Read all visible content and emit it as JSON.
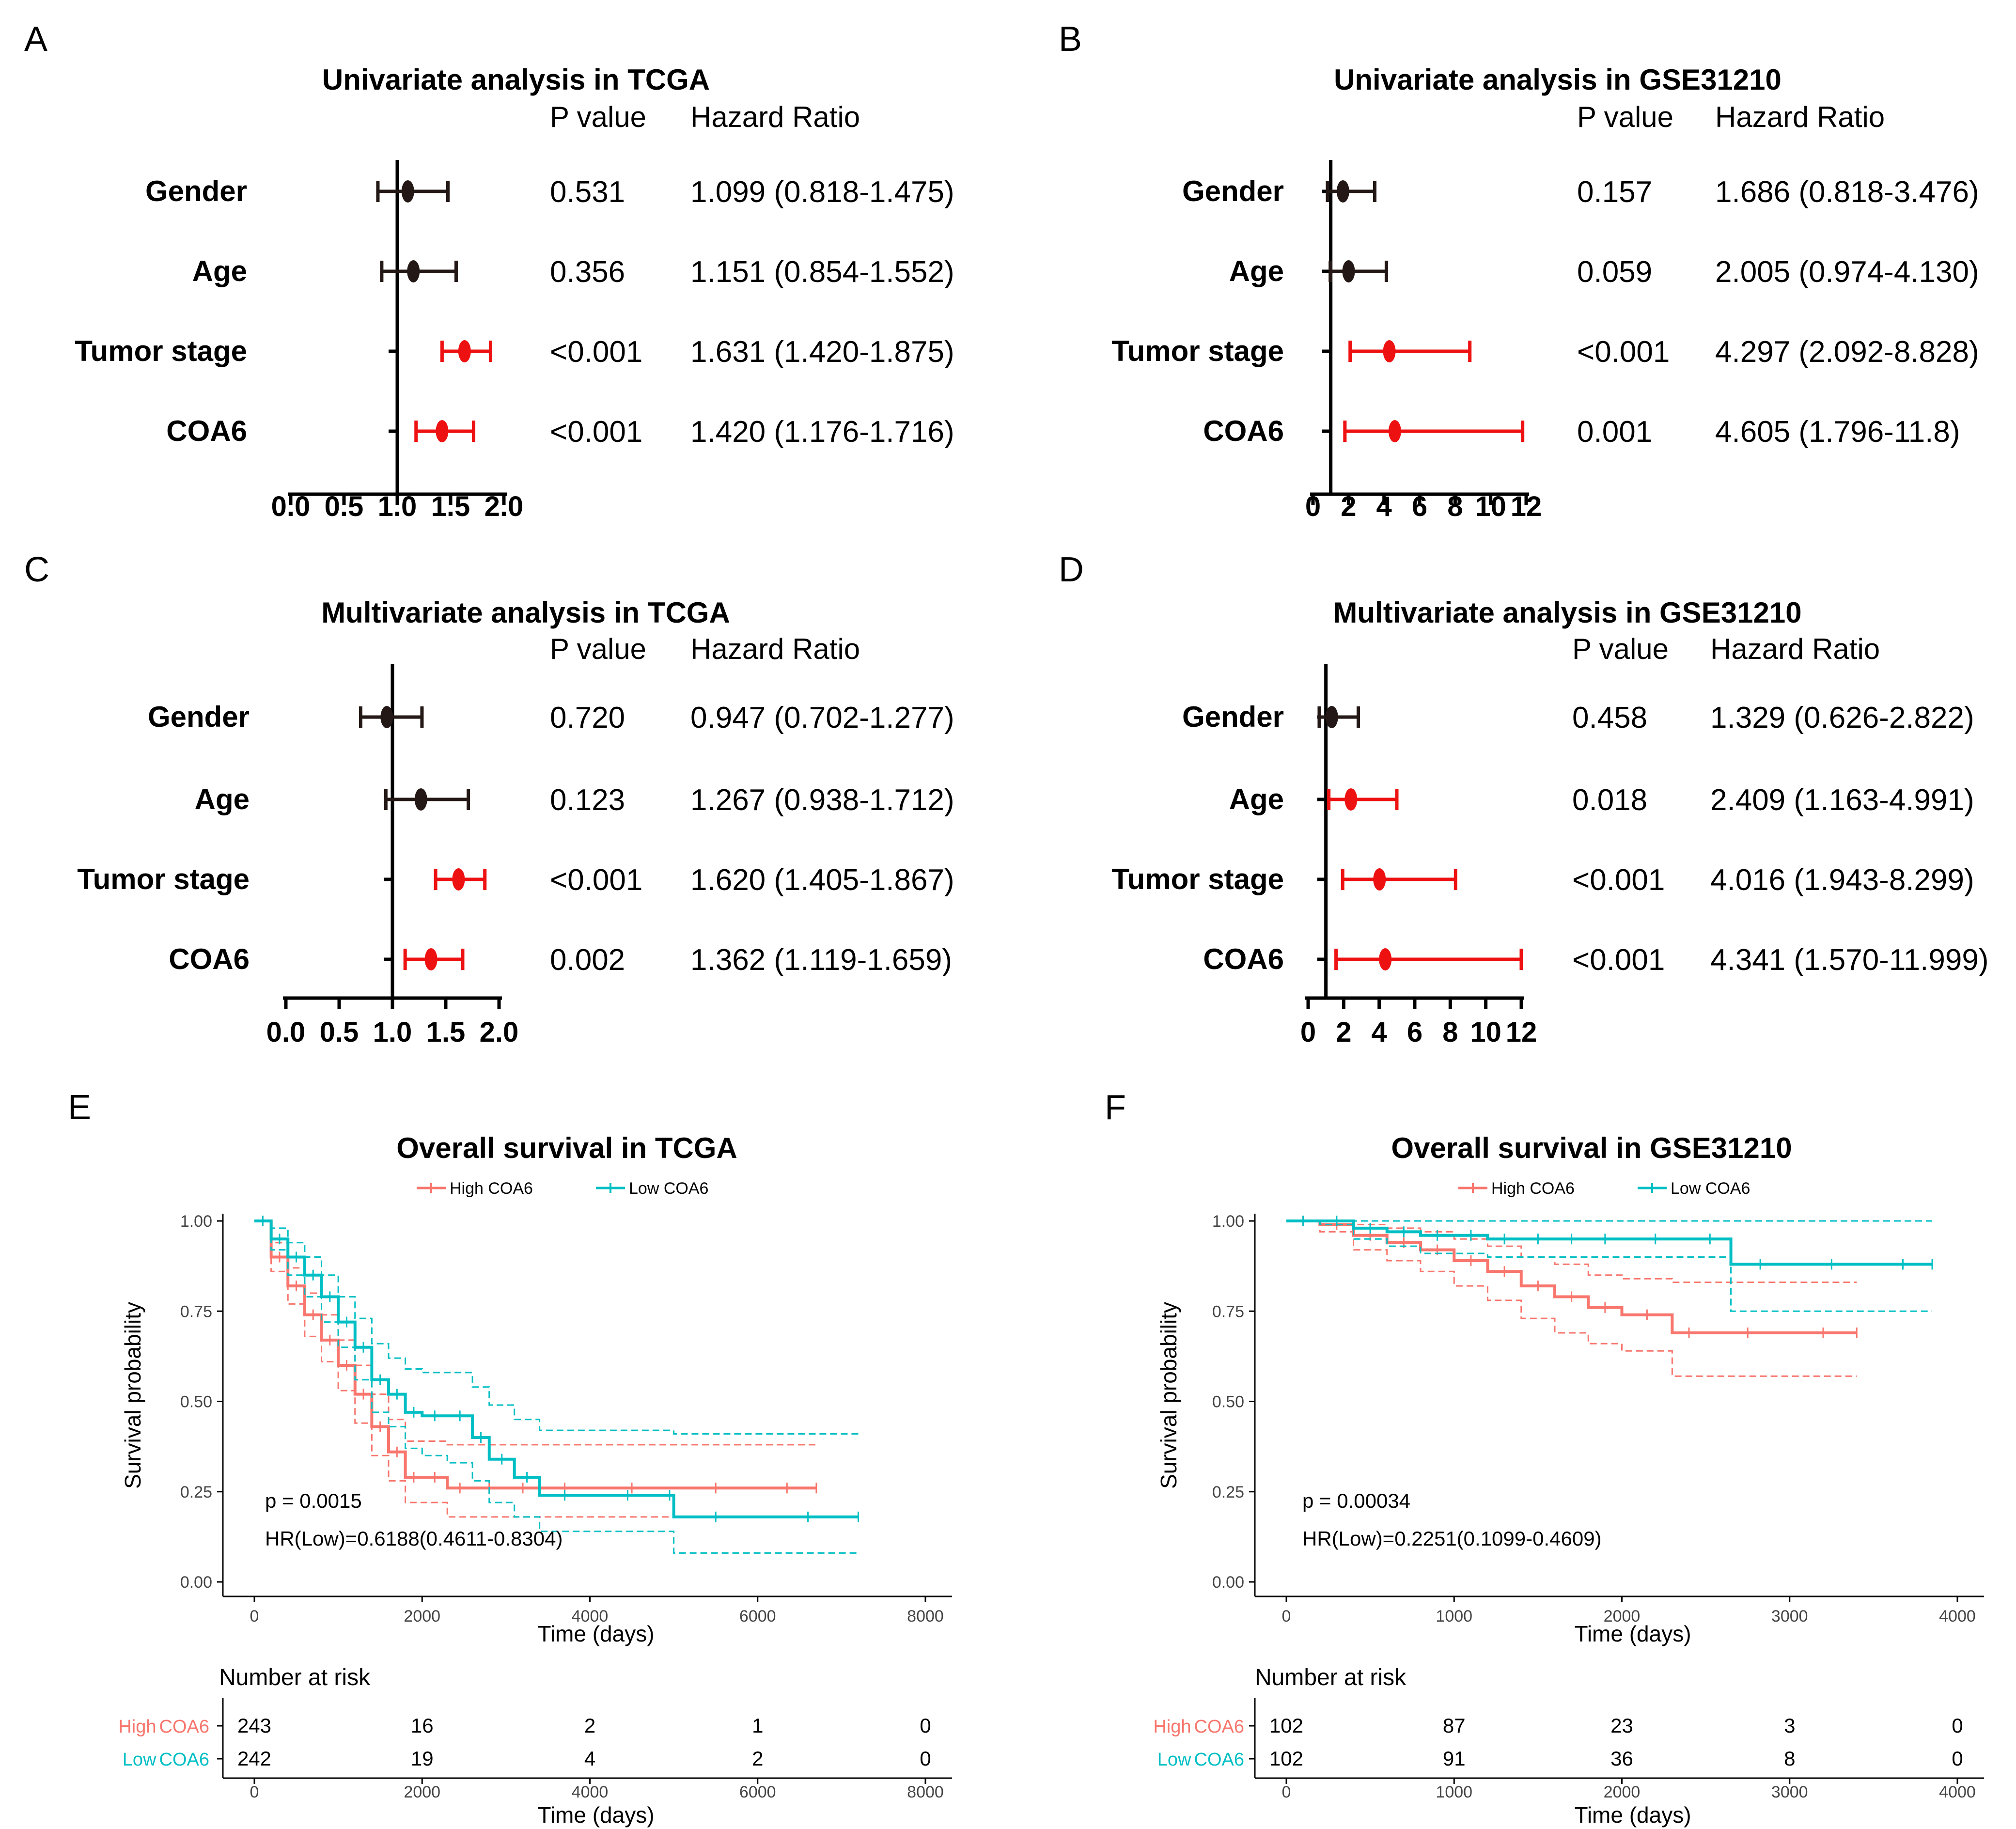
{
  "colors": {
    "significant": "#ee1111",
    "nonsignificant": "#231815",
    "high": "#f8766d",
    "low": "#00bfc4",
    "axis": "#000000"
  },
  "forest": [
    {
      "letter": "A",
      "title": "Univariate analysis in TCGA",
      "pvalue_header": "P value",
      "hr_header": "Hazard Ratio",
      "xticks": [
        "0.0",
        "0.5",
        "1.0",
        "1.5",
        "2.0"
      ],
      "xlim": [
        0,
        2
      ],
      "ref_line": 1,
      "rows": [
        {
          "label": "Gender",
          "p": "0.531",
          "hr_text": "1.099 (0.818-1.475)",
          "hr": 1.099,
          "lower": 0.818,
          "upper": 1.475,
          "significant": false
        },
        {
          "label": "Age",
          "p": "0.356",
          "hr_text": "1.151 (0.854-1.552)",
          "hr": 1.151,
          "lower": 0.854,
          "upper": 1.552,
          "significant": false
        },
        {
          "label": "Tumor stage",
          "p": "<0.001",
          "hr_text": "1.631 (1.420-1.875)",
          "hr": 1.631,
          "lower": 1.42,
          "upper": 1.875,
          "significant": true
        },
        {
          "label": "COA6",
          "p": "<0.001",
          "hr_text": "1.420 (1.176-1.716)",
          "hr": 1.42,
          "lower": 1.176,
          "upper": 1.716,
          "significant": true
        }
      ]
    },
    {
      "letter": "B",
      "title": "Univariate analysis in GSE31210",
      "pvalue_header": "P value",
      "hr_header": "Hazard Ratio",
      "xticks": [
        "0",
        "2",
        "4",
        "6",
        "8",
        "10",
        "12"
      ],
      "xlim": [
        0,
        12
      ],
      "ref_line": 1,
      "rows": [
        {
          "label": "Gender",
          "p": "0.157",
          "hr_text": "1.686 (0.818-3.476)",
          "hr": 1.686,
          "lower": 0.818,
          "upper": 3.476,
          "significant": false
        },
        {
          "label": "Age",
          "p": "0.059",
          "hr_text": "2.005 (0.974-4.130)",
          "hr": 2.005,
          "lower": 0.974,
          "upper": 4.13,
          "significant": false
        },
        {
          "label": "Tumor stage",
          "p": "<0.001",
          "hr_text": "4.297 (2.092-8.828)",
          "hr": 4.297,
          "lower": 2.092,
          "upper": 8.828,
          "significant": true
        },
        {
          "label": "COA6",
          "p": "0.001",
          "hr_text": "4.605 (1.796-11.8)",
          "hr": 4.605,
          "lower": 1.796,
          "upper": 11.8,
          "significant": true
        }
      ]
    },
    {
      "letter": "C",
      "title": "Multivariate analysis in TCGA",
      "pvalue_header": "P value",
      "hr_header": "Hazard Ratio",
      "xticks": [
        "0.0",
        "0.5",
        "1.0",
        "1.5",
        "2.0"
      ],
      "xlim": [
        0,
        2
      ],
      "ref_line": 1,
      "rows": [
        {
          "label": "Gender",
          "p": "0.720",
          "hr_text": "0.947 (0.702-1.277)",
          "hr": 0.947,
          "lower": 0.702,
          "upper": 1.277,
          "significant": false
        },
        {
          "label": "Age",
          "p": "0.123",
          "hr_text": "1.267 (0.938-1.712)",
          "hr": 1.267,
          "lower": 0.938,
          "upper": 1.712,
          "significant": false
        },
        {
          "label": "Tumor stage",
          "p": "<0.001",
          "hr_text": "1.620 (1.405-1.867)",
          "hr": 1.62,
          "lower": 1.405,
          "upper": 1.867,
          "significant": true
        },
        {
          "label": "COA6",
          "p": "0.002",
          "hr_text": "1.362 (1.119-1.659)",
          "hr": 1.362,
          "lower": 1.119,
          "upper": 1.659,
          "significant": true
        }
      ]
    },
    {
      "letter": "D",
      "title": "Multivariate analysis in GSE31210",
      "pvalue_header": "P value",
      "hr_header": "Hazard Ratio",
      "xticks": [
        "0",
        "2",
        "4",
        "6",
        "8",
        "10",
        "12"
      ],
      "xlim": [
        0,
        12
      ],
      "ref_line": 1,
      "rows": [
        {
          "label": "Gender",
          "p": "0.458",
          "hr_text": "1.329 (0.626-2.822)",
          "hr": 1.329,
          "lower": 0.626,
          "upper": 2.822,
          "significant": false
        },
        {
          "label": "Age",
          "p": "0.018",
          "hr_text": "2.409 (1.163-4.991)",
          "hr": 2.409,
          "lower": 1.163,
          "upper": 4.991,
          "significant": true
        },
        {
          "label": "Tumor stage",
          "p": "<0.001",
          "hr_text": "4.016 (1.943-8.299)",
          "hr": 4.016,
          "lower": 1.943,
          "upper": 8.299,
          "significant": true
        },
        {
          "label": "COA6",
          "p": "<0.001",
          "hr_text": "4.341 (1.570-11.999)",
          "hr": 4.341,
          "lower": 1.57,
          "upper": 11.999,
          "significant": true
        }
      ]
    }
  ],
  "survival": [
    {
      "letter": "E",
      "title": "Overall survival in TCGA",
      "xlabel": "Time (days)",
      "ylabel": "Survival probability",
      "xticks": [
        "0",
        "2000",
        "4000",
        "6000",
        "8000"
      ],
      "yticks": [
        "0.00",
        "0.25",
        "0.50",
        "0.75",
        "1.00"
      ],
      "xlim": [
        0,
        8000
      ],
      "ylim": [
        0,
        1
      ],
      "pvalue_text": "p = 0.0015",
      "hr_text": "HR(Low)=0.6188(0.4611-0.8304)",
      "risk_title": "Number at risk",
      "risk_times": [
        "0",
        "2000",
        "4000",
        "6000",
        "8000"
      ],
      "risk_xlabel": "Time (days)",
      "strata": [
        {
          "name": "High COA6",
          "risk_prefix": "High",
          "risk_suffix": "COA6",
          "risk": [
            "243",
            "16",
            "2",
            "1",
            "0"
          ]
        },
        {
          "name": "Low COA6",
          "risk_prefix": "Low",
          "risk_suffix": "COA6",
          "risk": [
            "242",
            "19",
            "4",
            "2",
            "0"
          ]
        }
      ]
    },
    {
      "letter": "F",
      "title": "Overall survival in GSE31210",
      "xlabel": "Time (days)",
      "ylabel": "Survival probability",
      "xticks": [
        "0",
        "1000",
        "2000",
        "3000",
        "4000"
      ],
      "yticks": [
        "0.00",
        "0.25",
        "0.50",
        "0.75",
        "1.00"
      ],
      "xlim": [
        0,
        4000
      ],
      "ylim": [
        0,
        1
      ],
      "pvalue_text": "p = 0.00034",
      "hr_text": "HR(Low)=0.2251(0.1099-0.4609)",
      "risk_title": "Number at risk",
      "risk_times": [
        "0",
        "1000",
        "2000",
        "3000",
        "4000"
      ],
      "risk_xlabel": "Time (days)",
      "strata": [
        {
          "name": "High COA6",
          "risk_prefix": "High",
          "risk_suffix": "COA6",
          "risk": [
            "102",
            "87",
            "23",
            "3",
            "0"
          ]
        },
        {
          "name": "Low COA6",
          "risk_prefix": "Low",
          "risk_suffix": "COA6",
          "risk": [
            "102",
            "91",
            "36",
            "8",
            "0"
          ]
        }
      ]
    }
  ],
  "chart_data": [
    {
      "type": "forest",
      "title": "Univariate analysis in TCGA",
      "categories": [
        "Gender",
        "Age",
        "Tumor stage",
        "COA6"
      ],
      "hr": [
        1.099,
        1.151,
        1.631,
        1.42
      ],
      "lower": [
        0.818,
        0.854,
        1.42,
        1.176
      ],
      "upper": [
        1.475,
        1.552,
        1.875,
        1.716
      ],
      "p": [
        "0.531",
        "0.356",
        "<0.001",
        "<0.001"
      ],
      "xlim": [
        0,
        2
      ]
    },
    {
      "type": "forest",
      "title": "Univariate analysis in GSE31210",
      "categories": [
        "Gender",
        "Age",
        "Tumor stage",
        "COA6"
      ],
      "hr": [
        1.686,
        2.005,
        4.297,
        4.605
      ],
      "lower": [
        0.818,
        0.974,
        2.092,
        1.796
      ],
      "upper": [
        3.476,
        4.13,
        8.828,
        11.8
      ],
      "p": [
        "0.157",
        "0.059",
        "<0.001",
        "0.001"
      ],
      "xlim": [
        0,
        12
      ]
    },
    {
      "type": "forest",
      "title": "Multivariate analysis in TCGA",
      "categories": [
        "Gender",
        "Age",
        "Tumor stage",
        "COA6"
      ],
      "hr": [
        0.947,
        1.267,
        1.62,
        1.362
      ],
      "lower": [
        0.702,
        0.938,
        1.405,
        1.119
      ],
      "upper": [
        1.277,
        1.712,
        1.867,
        1.659
      ],
      "p": [
        "0.720",
        "0.123",
        "<0.001",
        "0.002"
      ],
      "xlim": [
        0,
        2
      ]
    },
    {
      "type": "forest",
      "title": "Multivariate analysis in GSE31210",
      "categories": [
        "Gender",
        "Age",
        "Tumor stage",
        "COA6"
      ],
      "hr": [
        1.329,
        2.409,
        4.016,
        4.341
      ],
      "lower": [
        0.626,
        1.163,
        1.943,
        1.57
      ],
      "upper": [
        2.822,
        4.991,
        8.299,
        11.999
      ],
      "p": [
        "0.458",
        "0.018",
        "<0.001",
        "<0.001"
      ],
      "xlim": [
        0,
        12
      ]
    },
    {
      "type": "line",
      "title": "Overall survival in TCGA",
      "xlabel": "Time (days)",
      "ylabel": "Survival probability",
      "xlim": [
        0,
        8000
      ],
      "ylim": [
        0,
        1
      ],
      "series": [
        {
          "name": "High COA6",
          "x": [
            0,
            200,
            400,
            600,
            800,
            1000,
            1200,
            1400,
            1600,
            1800,
            2000,
            2300,
            2600,
            3000,
            3400,
            4000,
            5000,
            6000,
            6700
          ],
          "y": [
            1.0,
            0.9,
            0.82,
            0.74,
            0.67,
            0.6,
            0.52,
            0.43,
            0.36,
            0.29,
            0.29,
            0.26,
            0.26,
            0.26,
            0.26,
            0.26,
            0.26,
            0.26,
            0.26
          ],
          "upper": [
            1.0,
            0.94,
            0.87,
            0.8,
            0.74,
            0.67,
            0.6,
            0.52,
            0.45,
            0.39,
            0.39,
            0.38,
            0.38,
            0.38,
            0.38,
            0.38,
            0.38,
            0.38,
            0.38
          ],
          "lower": [
            1.0,
            0.86,
            0.77,
            0.68,
            0.61,
            0.53,
            0.44,
            0.35,
            0.28,
            0.22,
            0.22,
            0.18,
            0.18,
            0.18,
            0.18,
            0.18,
            0.18,
            0.18,
            0.18
          ]
        },
        {
          "name": "Low COA6",
          "x": [
            0,
            200,
            400,
            600,
            800,
            1000,
            1200,
            1400,
            1600,
            1800,
            2000,
            2300,
            2600,
            2800,
            3100,
            3400,
            4000,
            4900,
            5000,
            6000,
            7200
          ],
          "y": [
            1.0,
            0.95,
            0.9,
            0.85,
            0.79,
            0.72,
            0.65,
            0.56,
            0.52,
            0.47,
            0.46,
            0.46,
            0.4,
            0.34,
            0.29,
            0.24,
            0.24,
            0.24,
            0.18,
            0.18,
            0.18
          ],
          "upper": [
            1.0,
            0.98,
            0.94,
            0.9,
            0.85,
            0.79,
            0.73,
            0.66,
            0.62,
            0.59,
            0.58,
            0.58,
            0.54,
            0.49,
            0.45,
            0.42,
            0.42,
            0.42,
            0.41,
            0.41,
            0.41
          ],
          "lower": [
            1.0,
            0.92,
            0.85,
            0.79,
            0.72,
            0.65,
            0.56,
            0.47,
            0.43,
            0.37,
            0.35,
            0.33,
            0.28,
            0.22,
            0.18,
            0.14,
            0.14,
            0.14,
            0.08,
            0.08,
            0.08
          ]
        }
      ]
    },
    {
      "type": "line",
      "title": "Overall survival in GSE31210",
      "xlabel": "Time (days)",
      "ylabel": "Survival probability",
      "xlim": [
        0,
        4000
      ],
      "ylim": [
        0,
        1
      ],
      "series": [
        {
          "name": "High COA6",
          "x": [
            0,
            200,
            400,
            600,
            800,
            1000,
            1200,
            1400,
            1600,
            1800,
            2000,
            2300,
            2500,
            3000,
            3400
          ],
          "y": [
            1.0,
            0.99,
            0.96,
            0.94,
            0.92,
            0.89,
            0.86,
            0.82,
            0.79,
            0.76,
            0.74,
            0.69,
            0.69,
            0.69,
            0.69
          ],
          "upper": [
            1.0,
            1.0,
            0.99,
            0.98,
            0.97,
            0.95,
            0.93,
            0.9,
            0.88,
            0.85,
            0.84,
            0.83,
            0.83,
            0.83,
            0.83
          ],
          "lower": [
            1.0,
            0.97,
            0.92,
            0.89,
            0.86,
            0.82,
            0.78,
            0.73,
            0.69,
            0.66,
            0.64,
            0.57,
            0.57,
            0.57,
            0.57
          ]
        },
        {
          "name": "Low COA6",
          "x": [
            0,
            200,
            400,
            600,
            800,
            1000,
            1200,
            1400,
            1600,
            1800,
            2000,
            2400,
            2650,
            3000,
            3500,
            3850
          ],
          "y": [
            1.0,
            1.0,
            0.98,
            0.97,
            0.96,
            0.96,
            0.95,
            0.95,
            0.95,
            0.95,
            0.95,
            0.95,
            0.88,
            0.88,
            0.88,
            0.88
          ],
          "upper": [
            1.0,
            1.0,
            1.0,
            1.0,
            1.0,
            1.0,
            1.0,
            1.0,
            1.0,
            1.0,
            1.0,
            1.0,
            1.0,
            1.0,
            1.0,
            1.0
          ],
          "lower": [
            1.0,
            0.99,
            0.95,
            0.93,
            0.91,
            0.91,
            0.9,
            0.9,
            0.9,
            0.9,
            0.9,
            0.9,
            0.75,
            0.75,
            0.75,
            0.75
          ]
        }
      ]
    }
  ]
}
